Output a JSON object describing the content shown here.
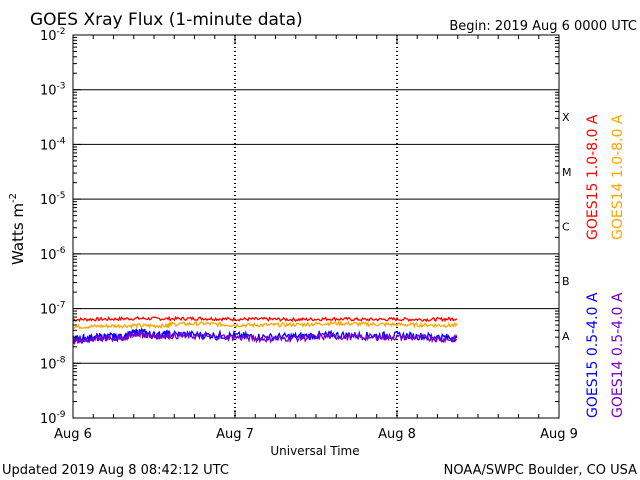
{
  "header": {
    "title": "GOES Xray Flux (1-minute data)",
    "begin": "Begin:  2019 Aug 6 0000 UTC"
  },
  "footer": {
    "updated": "Updated 2019 Aug  8 08:42:12 UTC",
    "credit": "NOAA/SWPC Boulder, CO USA"
  },
  "chart_data": {
    "type": "line",
    "title": "GOES Xray Flux (1-minute data)",
    "xlabel": "Universal Time",
    "ylabel": "Watts m",
    "ylabel_sup": "-2",
    "yscale": "log",
    "ylim": [
      1e-09,
      0.01
    ],
    "xlim": [
      0,
      3
    ],
    "x_units": "days since 2019 Aug 6 0000 UTC",
    "x_ticks": [
      {
        "value": 0,
        "label": "Aug 6"
      },
      {
        "value": 1,
        "label": "Aug 7"
      },
      {
        "value": 2,
        "label": "Aug 8"
      },
      {
        "value": 3,
        "label": "Aug 9"
      }
    ],
    "y_ticks": [
      {
        "exp": -2,
        "label": "10",
        "sup": "-2"
      },
      {
        "exp": -3,
        "label": "10",
        "sup": "-3"
      },
      {
        "exp": -4,
        "label": "10",
        "sup": "-4"
      },
      {
        "exp": -5,
        "label": "10",
        "sup": "-5"
      },
      {
        "exp": -6,
        "label": "10",
        "sup": "-6"
      },
      {
        "exp": -7,
        "label": "10",
        "sup": "-7"
      },
      {
        "exp": -8,
        "label": "10",
        "sup": "-8"
      },
      {
        "exp": -9,
        "label": "10",
        "sup": "-9"
      }
    ],
    "flare_classes": [
      {
        "label": "X",
        "exp": -3.5
      },
      {
        "label": "M",
        "exp": -4.5
      },
      {
        "label": "C",
        "exp": -5.5
      },
      {
        "label": "B",
        "exp": -6.5
      },
      {
        "label": "A",
        "exp": -7.5
      }
    ],
    "series": [
      {
        "name": "GOES15 1.0-8.0 A",
        "color": "#ff0000",
        "x": [
          0,
          0.2,
          0.4,
          0.6,
          0.8,
          1.0,
          1.2,
          1.4,
          1.6,
          1.8,
          2.0,
          2.2,
          2.37
        ],
        "values": [
          6.3e-08,
          6.4e-08,
          6.6e-08,
          6.5e-08,
          6.6e-08,
          6.4e-08,
          6.4e-08,
          6.3e-08,
          6.5e-08,
          6.3e-08,
          6.4e-08,
          6.3e-08,
          6.5e-08
        ]
      },
      {
        "name": "GOES14 1.0-8.0 A",
        "color": "#ffa500",
        "x": [
          0,
          0.2,
          0.4,
          0.58,
          0.6,
          0.8,
          1.0,
          1.2,
          1.4,
          1.6,
          1.8,
          2.0,
          2.2,
          2.37
        ],
        "values": [
          4.6e-08,
          4.8e-08,
          4.9e-08,
          4.8e-08,
          5.2e-08,
          5.3e-08,
          5e-08,
          5e-08,
          5.1e-08,
          5.4e-08,
          5.2e-08,
          5.1e-08,
          5e-08,
          4.9e-08
        ]
      },
      {
        "name": "GOES15 0.5-4.0 A",
        "color": "#0000ff",
        "x": [
          0,
          0.1,
          0.2,
          0.3,
          0.4,
          0.5,
          0.6,
          0.8,
          1.0,
          1.2,
          1.4,
          1.6,
          1.8,
          2.0,
          2.2,
          2.37
        ],
        "values": [
          2.8e-08,
          2.9e-08,
          3.1e-08,
          3e-08,
          3.8e-08,
          3.3e-08,
          3.4e-08,
          3.3e-08,
          3.2e-08,
          3e-08,
          3.1e-08,
          3.3e-08,
          3.2e-08,
          3.2e-08,
          3.1e-08,
          2.9e-08
        ]
      },
      {
        "name": "GOES14 0.5-4.0 A",
        "color": "#7700cc",
        "x": [
          0,
          0.1,
          0.2,
          0.3,
          0.4,
          0.5,
          0.6,
          0.8,
          1.0,
          1.2,
          1.4,
          1.6,
          1.8,
          2.0,
          2.2,
          2.37
        ],
        "values": [
          2.6e-08,
          2.7e-08,
          2.9e-08,
          2.8e-08,
          3.5e-08,
          3.1e-08,
          3.2e-08,
          3.1e-08,
          3e-08,
          2.8e-08,
          2.9e-08,
          3.1e-08,
          3e-08,
          3e-08,
          2.9e-08,
          2.7e-08
        ]
      }
    ]
  }
}
